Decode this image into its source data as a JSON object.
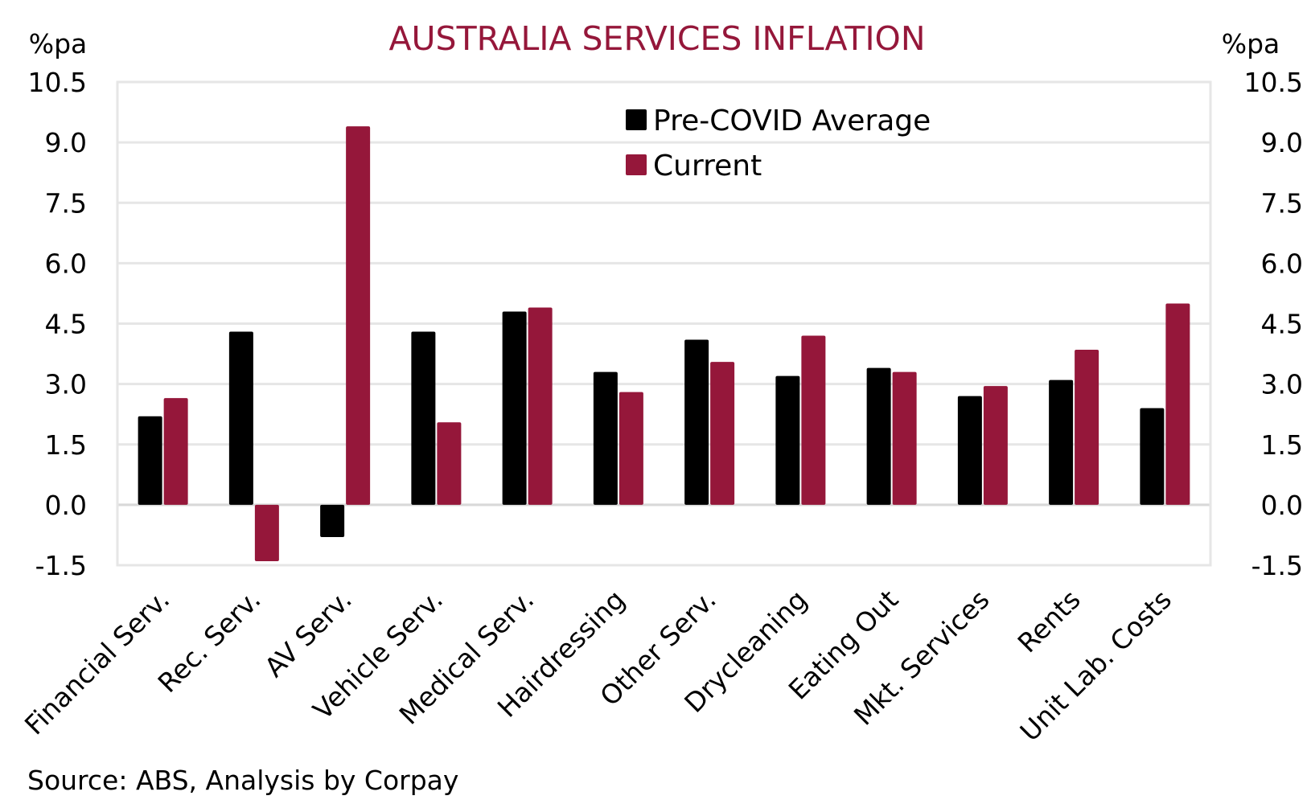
{
  "chart_data": {
    "type": "bar",
    "title": "AUSTRALIA SERVICES INFLATION",
    "ylabel_left": "%pa",
    "ylabel_right": "%pa",
    "xlabel": "",
    "ylim": [
      -1.5,
      10.5
    ],
    "yticks": [
      10.5,
      9.0,
      7.5,
      6.0,
      4.5,
      3.0,
      1.5,
      0.0,
      -1.5
    ],
    "ytick_labels": [
      "10.5",
      "9.0",
      "7.5",
      "6.0",
      "4.5",
      "3.0",
      "1.5",
      "0.0",
      "-1.5"
    ],
    "grid": true,
    "legend_position": "top-center",
    "categories": [
      "Financial Serv.",
      "Rec. Serv.",
      "AV Serv.",
      "Vehicle Serv.",
      "Medical Serv.",
      "Hairdressing",
      "Other Serv.",
      "Drycleaning",
      "Eating Out",
      "Mkt. Services",
      "Rents",
      "Unit Lab. Costs"
    ],
    "series": [
      {
        "name": "Pre-COVID Average",
        "color": "#000000",
        "values": [
          2.2,
          4.3,
          -0.8,
          4.3,
          4.8,
          3.3,
          4.1,
          3.2,
          3.4,
          2.7,
          3.1,
          2.4
        ]
      },
      {
        "name": "Current",
        "color": "#95173a",
        "values": [
          2.65,
          -1.4,
          9.4,
          2.05,
          4.9,
          2.8,
          3.55,
          4.2,
          3.3,
          2.95,
          3.85,
          5.0
        ]
      }
    ],
    "source": "Source: ABS, Analysis by Corpay"
  }
}
